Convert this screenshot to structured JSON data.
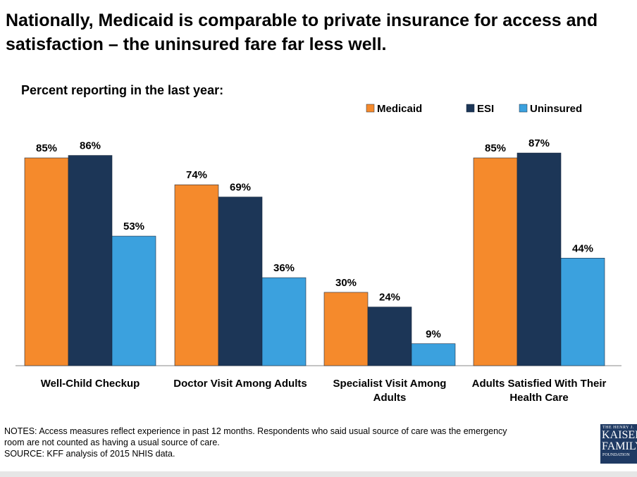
{
  "title": "Nationally, Medicaid is comparable to private insurance for access and satisfaction – the uninsured fare far less well.",
  "subtitle": "Percent reporting in the last year:",
  "chart_data": {
    "type": "bar",
    "categories": [
      [
        "Well-Child Checkup"
      ],
      [
        "Doctor Visit Among Adults"
      ],
      [
        "Specialist Visit Among",
        "Adults"
      ],
      [
        "Adults Satisfied With Their",
        "Health Care"
      ]
    ],
    "series": [
      {
        "name": "Medicaid",
        "color": "#f58a2c",
        "values": [
          85,
          74,
          30,
          85
        ]
      },
      {
        "name": "ESI",
        "color": "#1c3657",
        "values": [
          86,
          69,
          24,
          87
        ]
      },
      {
        "name": "Uninsured",
        "color": "#3ba1de",
        "values": [
          53,
          36,
          9,
          44
        ]
      }
    ],
    "value_suffix": "%",
    "ylim": [
      0,
      100
    ],
    "grid": false,
    "legend_position": "top-right"
  },
  "notes": {
    "line1": "NOTES: Access measures reflect experience in past 12 months. Respondents  who said usual source of care was the emergency",
    "line2": "room are not counted as having a usual source of care.",
    "line3": "SOURCE: KFF analysis of 2015 NHIS  data."
  },
  "logo": {
    "line1": "THE HENRY J.",
    "line2": "KAISER",
    "line3": "FAMILY",
    "line4": "FOUNDATION"
  }
}
